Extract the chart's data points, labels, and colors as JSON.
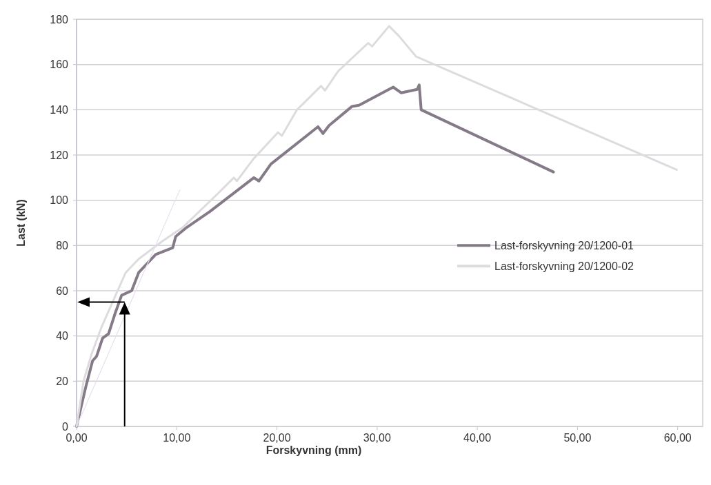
{
  "chart_data": {
    "type": "line",
    "xlabel": "Forskyvning (mm)",
    "ylabel": "Last (kN)",
    "xlim": [
      0,
      62.5
    ],
    "ylim": [
      0,
      180
    ],
    "xticks": [
      {
        "value": 0,
        "label": "0,00"
      },
      {
        "value": 10,
        "label": "10,00"
      },
      {
        "value": 20,
        "label": "20,00"
      },
      {
        "value": 30,
        "label": "30,00"
      },
      {
        "value": 40,
        "label": "40,00"
      },
      {
        "value": 50,
        "label": "50,00"
      },
      {
        "value": 60,
        "label": "60,00"
      }
    ],
    "yticks": [
      0,
      20,
      40,
      60,
      80,
      100,
      120,
      140,
      160,
      180
    ],
    "grid": "y",
    "legend": "right",
    "marker": "none",
    "line_style": "solid",
    "series": [
      {
        "name": "Last-forskyvning 20/1200-01",
        "color": "#857a87",
        "x": [
          0,
          0.95,
          1.6,
          2.0,
          2.6,
          3.2,
          3.85,
          4.5,
          5.5,
          6.2,
          7.9,
          9.6,
          9.9,
          11,
          13.3,
          17.7,
          18.2,
          19.4,
          24.1,
          24.6,
          25.2,
          27.5,
          28.2,
          31.6,
          32.4,
          34,
          34.2,
          34.4,
          47.6
        ],
        "values": [
          0,
          18,
          29,
          31,
          39,
          41,
          50,
          58,
          60,
          68,
          76,
          79,
          84,
          88,
          95,
          110,
          108.5,
          116,
          132.5,
          129.5,
          133,
          141.5,
          142,
          150,
          147.5,
          149,
          151,
          140,
          112.5
        ]
      },
      {
        "name": "Last-forskyvning 20/1200-02",
        "color": "#dedbdf",
        "x": [
          0,
          0.7,
          1.5,
          2.5,
          3.7,
          4.9,
          6.2,
          8.6,
          10.6,
          14,
          15.7,
          16,
          17.7,
          20.1,
          20.5,
          22,
          24.4,
          24.8,
          26.1,
          29.1,
          29.5,
          31.2,
          32.2,
          33.9,
          59.9
        ],
        "values": [
          0,
          20,
          32,
          44,
          56,
          68,
          74,
          82,
          88,
          102.5,
          110,
          108.5,
          118.5,
          130,
          128.5,
          140,
          150.5,
          148.5,
          157,
          169.5,
          168,
          177,
          172.5,
          163.5,
          113.5
        ]
      },
      {
        "color": "#e6e0ee",
        "x": [
          0,
          10.3
        ],
        "values": [
          0,
          104.5
        ]
      }
    ]
  }
}
